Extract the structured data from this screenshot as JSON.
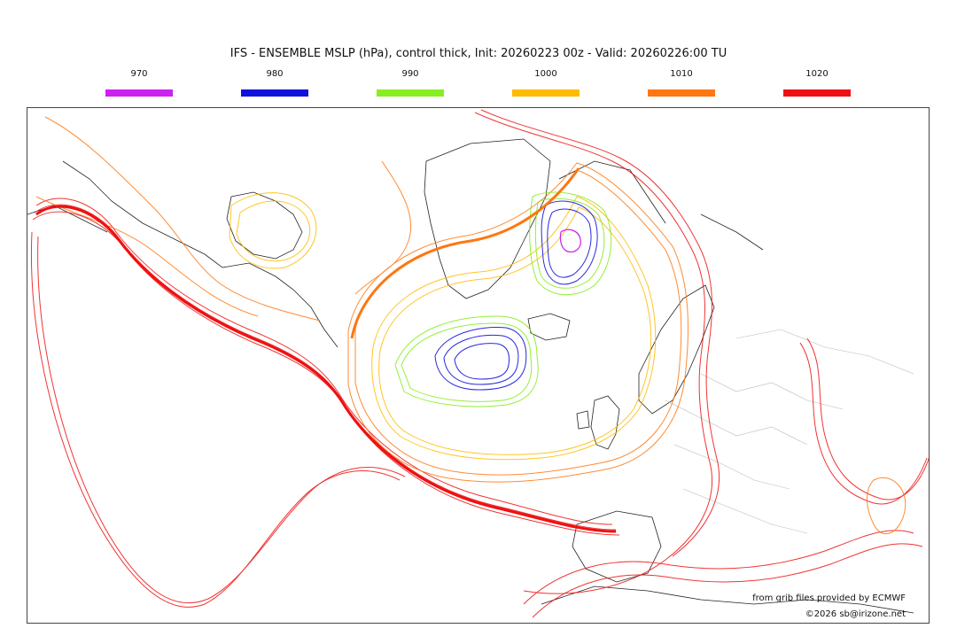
{
  "title": "IFS - ENSEMBLE MSLP (hPa), control thick, Init: 20260223 00z - Valid: 20260226:00 TU",
  "legend": [
    {
      "label": "970",
      "color": "#cc22ee"
    },
    {
      "label": "980",
      "color": "#1111dd"
    },
    {
      "label": "990",
      "color": "#88ee22"
    },
    {
      "label": "1000",
      "color": "#ffbb00"
    },
    {
      "label": "1010",
      "color": "#ff7711"
    },
    {
      "label": "1020",
      "color": "#ee1111"
    }
  ],
  "credits": {
    "source": "from grib files provided by ECMWF",
    "copyright": "©2026 sb@irizone.net"
  }
}
